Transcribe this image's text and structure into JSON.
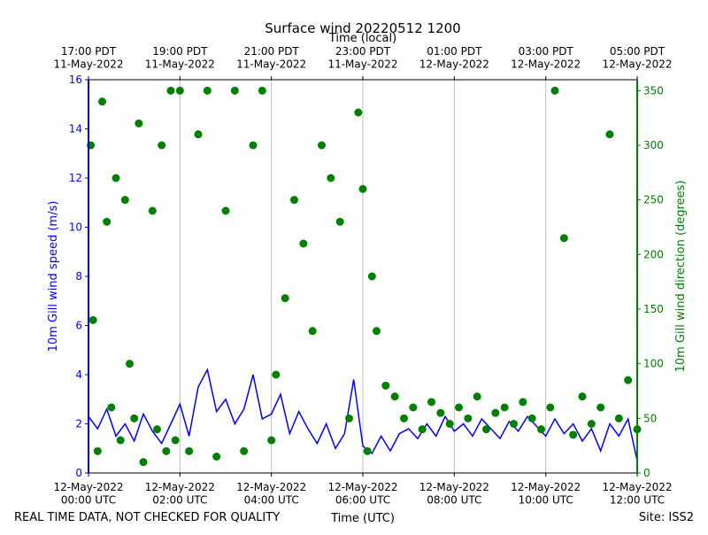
{
  "chart_data": {
    "type": "line",
    "title": "Surface wind 20220512 1200",
    "xlabel": "Time (UTC)",
    "x2label": "Time (local)",
    "ylabel": "10m Gill wind speed (m/s)",
    "y2label": "10m Gill wind direction (degrees)",
    "footer_left": "REAL TIME DATA, NOT CHECKED FOR QUALITY",
    "footer_right": "Site: ISS2",
    "xlim": [
      0,
      12
    ],
    "xticks": [
      {
        "value": 0,
        "label": "12-May-2022\n00:00 UTC"
      },
      {
        "value": 2,
        "label": "12-May-2022\n02:00 UTC"
      },
      {
        "value": 4,
        "label": "12-May-2022\n04:00 UTC"
      },
      {
        "value": 6,
        "label": "12-May-2022\n06:00 UTC"
      },
      {
        "value": 8,
        "label": "12-May-2022\n08:00 UTC"
      },
      {
        "value": 10,
        "label": "12-May-2022\n10:00 UTC"
      },
      {
        "value": 12,
        "label": "12-May-2022\n12:00 UTC"
      }
    ],
    "x2ticks": [
      {
        "value": 0,
        "label": "17:00 PDT\n11-May-2022"
      },
      {
        "value": 2,
        "label": "19:00 PDT\n11-May-2022"
      },
      {
        "value": 4,
        "label": "21:00 PDT\n11-May-2022"
      },
      {
        "value": 6,
        "label": "23:00 PDT\n11-May-2022"
      },
      {
        "value": 8,
        "label": "01:00 PDT\n12-May-2022"
      },
      {
        "value": 10,
        "label": "03:00 PDT\n12-May-2022"
      },
      {
        "value": 12,
        "label": "05:00 PDT\n12-May-2022"
      }
    ],
    "ylim": [
      0,
      16
    ],
    "yticks": [
      0,
      2,
      4,
      6,
      8,
      10,
      12,
      14,
      16
    ],
    "y2lim": [
      0,
      360
    ],
    "y2ticks": [
      0,
      50,
      100,
      150,
      200,
      250,
      300,
      350
    ],
    "xgrid": true,
    "series": [
      {
        "mode": "line",
        "color": "#0000ff",
        "x": [
          0,
          0.2,
          0.4,
          0.6,
          0.8,
          1,
          1.2,
          1.4,
          1.6,
          1.8,
          2,
          2.2,
          2.4,
          2.6,
          2.8,
          3,
          3.2,
          3.4,
          3.6,
          3.8,
          4,
          4.2,
          4.4,
          4.6,
          4.8,
          5,
          5.2,
          5.4,
          5.6,
          5.8,
          6,
          6.2,
          6.4,
          6.6,
          6.8,
          7,
          7.2,
          7.4,
          7.6,
          7.8,
          8,
          8.2,
          8.4,
          8.6,
          8.8,
          9,
          9.2,
          9.4,
          9.6,
          9.8,
          10,
          10.2,
          10.4,
          10.6,
          10.8,
          11,
          11.2,
          11.4,
          11.6,
          11.8,
          12
        ],
        "values": [
          2.3,
          1.8,
          2.6,
          1.5,
          2.0,
          1.3,
          2.4,
          1.7,
          1.2,
          2.0,
          2.8,
          1.5,
          3.5,
          4.2,
          2.5,
          3.0,
          2.0,
          2.6,
          4.0,
          2.2,
          2.4,
          3.2,
          1.6,
          2.5,
          1.8,
          1.2,
          2.0,
          1.0,
          1.6,
          3.8,
          1.1,
          0.8,
          1.5,
          0.9,
          1.6,
          1.8,
          1.4,
          2.0,
          1.5,
          2.3,
          1.7,
          2.0,
          1.5,
          2.2,
          1.8,
          1.4,
          2.1,
          1.7,
          2.3,
          1.9,
          1.5,
          2.2,
          1.6,
          2.0,
          1.3,
          1.8,
          0.9,
          2.0,
          1.5,
          2.2,
          0.5
        ]
      },
      {
        "mode": "markers",
        "axis": "y2",
        "color": "#008000",
        "x": [
          0.05,
          0.1,
          0.2,
          0.3,
          0.4,
          0.5,
          0.6,
          0.7,
          0.8,
          0.9,
          1.0,
          1.1,
          1.2,
          1.4,
          1.5,
          1.6,
          1.7,
          1.8,
          1.9,
          2.0,
          2.2,
          2.4,
          2.6,
          2.8,
          3.0,
          3.2,
          3.4,
          3.6,
          3.8,
          4.0,
          4.1,
          4.3,
          4.5,
          4.7,
          4.9,
          5.1,
          5.3,
          5.5,
          5.7,
          5.9,
          6.0,
          6.1,
          6.2,
          6.3,
          6.5,
          6.7,
          6.9,
          7.1,
          7.3,
          7.5,
          7.7,
          7.9,
          8.1,
          8.3,
          8.5,
          8.7,
          8.9,
          9.1,
          9.3,
          9.5,
          9.7,
          9.9,
          10.1,
          10.2,
          10.4,
          10.6,
          10.8,
          11.0,
          11.2,
          11.4,
          11.6,
          11.8,
          12.0
        ],
        "values": [
          300,
          140,
          20,
          340,
          230,
          60,
          270,
          30,
          250,
          100,
          50,
          320,
          10,
          240,
          40,
          300,
          20,
          350,
          30,
          350,
          20,
          310,
          350,
          15,
          240,
          350,
          20,
          300,
          350,
          30,
          90,
          160,
          250,
          210,
          130,
          300,
          270,
          230,
          50,
          330,
          260,
          20,
          180,
          130,
          80,
          70,
          50,
          60,
          40,
          65,
          55,
          45,
          60,
          50,
          70,
          40,
          55,
          60,
          45,
          65,
          50,
          40,
          60,
          350,
          215,
          35,
          70,
          45,
          60,
          310,
          50,
          85,
          40
        ]
      }
    ]
  }
}
